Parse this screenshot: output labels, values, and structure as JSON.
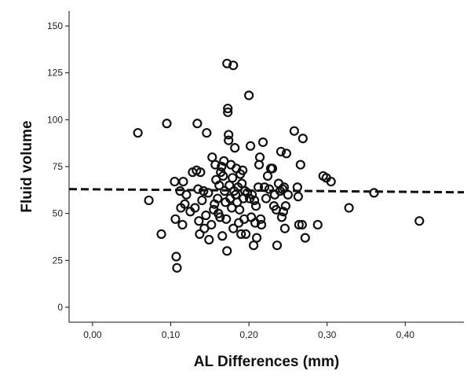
{
  "chart_data": {
    "type": "scatter",
    "title": "",
    "xlabel": "AL Differences (mm)",
    "ylabel": "Fluid volume",
    "xlim": [
      -0.03,
      0.475
    ],
    "ylim": [
      -8,
      158
    ],
    "xticks": [
      0.0,
      0.1,
      0.2,
      0.3,
      0.4
    ],
    "xtick_labels": [
      "0,00",
      "0,10",
      "0,20",
      "0,30",
      "0,40"
    ],
    "yticks": [
      0,
      25,
      50,
      75,
      100,
      125,
      150
    ],
    "ytick_labels": [
      "0",
      "25",
      "50",
      "75",
      "100",
      "125",
      "150"
    ],
    "grid": false,
    "marker": "open-circle",
    "fit_line": {
      "style": "dashed",
      "x": [
        -0.03,
        0.475
      ],
      "y": [
        63,
        61.3
      ]
    },
    "series": [
      {
        "name": "",
        "points": [
          [
            0.058,
            93
          ],
          [
            0.072,
            57
          ],
          [
            0.088,
            39
          ],
          [
            0.095,
            98
          ],
          [
            0.105,
            67
          ],
          [
            0.106,
            47
          ],
          [
            0.107,
            27
          ],
          [
            0.108,
            21
          ],
          [
            0.112,
            62
          ],
          [
            0.113,
            53
          ],
          [
            0.115,
            44
          ],
          [
            0.116,
            67
          ],
          [
            0.118,
            55
          ],
          [
            0.12,
            60
          ],
          [
            0.125,
            51
          ],
          [
            0.128,
            72
          ],
          [
            0.131,
            53
          ],
          [
            0.133,
            73
          ],
          [
            0.134,
            98
          ],
          [
            0.135,
            63
          ],
          [
            0.136,
            46
          ],
          [
            0.137,
            39
          ],
          [
            0.138,
            72
          ],
          [
            0.14,
            57
          ],
          [
            0.142,
            62
          ],
          [
            0.143,
            42
          ],
          [
            0.145,
            49
          ],
          [
            0.146,
            93
          ],
          [
            0.148,
            61
          ],
          [
            0.149,
            36
          ],
          [
            0.152,
            44
          ],
          [
            0.153,
            80
          ],
          [
            0.155,
            52
          ],
          [
            0.156,
            55
          ],
          [
            0.157,
            76
          ],
          [
            0.158,
            68
          ],
          [
            0.16,
            58
          ],
          [
            0.161,
            50
          ],
          [
            0.162,
            65
          ],
          [
            0.163,
            48
          ],
          [
            0.164,
            72
          ],
          [
            0.165,
            75
          ],
          [
            0.166,
            38
          ],
          [
            0.167,
            70
          ],
          [
            0.168,
            78
          ],
          [
            0.169,
            62
          ],
          [
            0.17,
            56
          ],
          [
            0.171,
            47
          ],
          [
            0.172,
            30
          ],
          [
            0.172,
            130
          ],
          [
            0.173,
            106
          ],
          [
            0.173,
            104
          ],
          [
            0.174,
            89
          ],
          [
            0.174,
            92
          ],
          [
            0.175,
            65
          ],
          [
            0.176,
            58
          ],
          [
            0.177,
            76
          ],
          [
            0.178,
            53
          ],
          [
            0.179,
            69
          ],
          [
            0.18,
            129
          ],
          [
            0.18,
            42
          ],
          [
            0.181,
            62
          ],
          [
            0.182,
            85
          ],
          [
            0.183,
            60
          ],
          [
            0.184,
            74
          ],
          [
            0.185,
            56
          ],
          [
            0.186,
            64
          ],
          [
            0.187,
            45
          ],
          [
            0.188,
            52
          ],
          [
            0.189,
            71
          ],
          [
            0.19,
            39
          ],
          [
            0.191,
            66
          ],
          [
            0.192,
            73
          ],
          [
            0.193,
            58
          ],
          [
            0.194,
            47
          ],
          [
            0.195,
            62
          ],
          [
            0.196,
            39
          ],
          [
            0.198,
            61
          ],
          [
            0.2,
            113
          ],
          [
            0.201,
            58
          ],
          [
            0.202,
            86
          ],
          [
            0.203,
            48
          ],
          [
            0.204,
            60
          ],
          [
            0.206,
            33
          ],
          [
            0.207,
            57
          ],
          [
            0.208,
            45
          ],
          [
            0.209,
            54
          ],
          [
            0.21,
            37
          ],
          [
            0.212,
            64
          ],
          [
            0.213,
            76
          ],
          [
            0.214,
            80
          ],
          [
            0.215,
            47
          ],
          [
            0.216,
            44
          ],
          [
            0.218,
            88
          ],
          [
            0.22,
            64
          ],
          [
            0.222,
            58
          ],
          [
            0.224,
            70
          ],
          [
            0.226,
            63
          ],
          [
            0.228,
            74
          ],
          [
            0.23,
            74
          ],
          [
            0.232,
            54
          ],
          [
            0.233,
            60
          ],
          [
            0.235,
            52
          ],
          [
            0.236,
            33
          ],
          [
            0.238,
            66
          ],
          [
            0.24,
            62
          ],
          [
            0.241,
            83
          ],
          [
            0.242,
            48
          ],
          [
            0.243,
            63
          ],
          [
            0.244,
            51
          ],
          [
            0.245,
            64
          ],
          [
            0.246,
            42
          ],
          [
            0.247,
            54
          ],
          [
            0.248,
            82
          ],
          [
            0.25,
            60
          ],
          [
            0.258,
            94
          ],
          [
            0.262,
            64
          ],
          [
            0.263,
            59
          ],
          [
            0.264,
            44
          ],
          [
            0.266,
            76
          ],
          [
            0.268,
            44
          ],
          [
            0.269,
            90
          ],
          [
            0.272,
            37
          ],
          [
            0.288,
            44
          ],
          [
            0.295,
            70
          ],
          [
            0.299,
            69
          ],
          [
            0.305,
            67
          ],
          [
            0.328,
            53
          ],
          [
            0.36,
            61
          ],
          [
            0.418,
            46
          ]
        ]
      }
    ]
  }
}
